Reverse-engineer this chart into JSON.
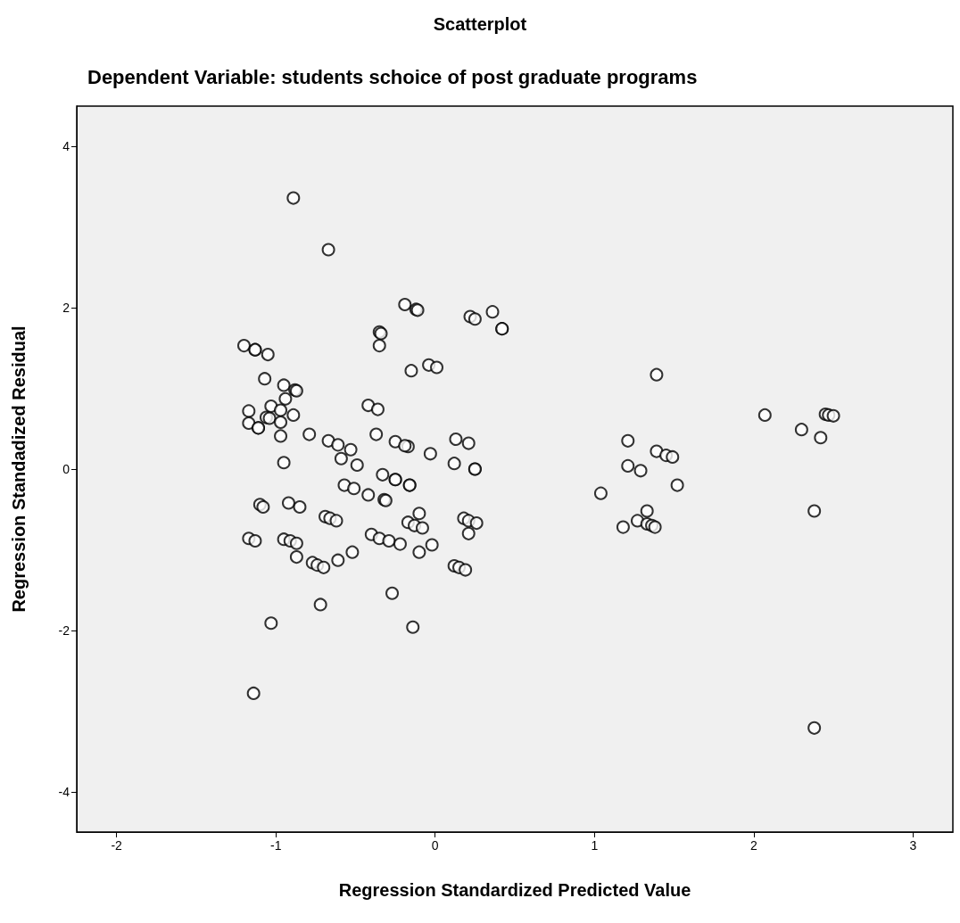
{
  "chart_data": {
    "type": "scatter",
    "title": "Scatterplot",
    "subtitle": "Dependent Variable: students schoice of post graduate programs",
    "xlabel": "Regression Standardized Predicted Value",
    "ylabel": "Regression Standadized Residual",
    "xlim": [
      -2.25,
      3.25
    ],
    "ylim": [
      -4.5,
      4.5
    ],
    "xticks": [
      -2,
      -1,
      0,
      1,
      2,
      3
    ],
    "yticks": [
      -4,
      -2,
      0,
      2,
      4
    ],
    "marker": "circle",
    "series": [
      {
        "color": "#000000",
        "x": [
          -0.89,
          -0.67,
          -0.19,
          -0.12,
          -0.11,
          0.22,
          0.25,
          0.36,
          0.42,
          0.42,
          -0.35,
          -0.34,
          -0.35,
          -1.2,
          -1.13,
          -1.13,
          -1.05,
          -0.15,
          -0.04,
          0.01,
          -1.07,
          -0.95,
          -0.88,
          -0.87,
          -0.94,
          -1.17,
          -1.03,
          -0.97,
          -0.89,
          -1.06,
          -1.04,
          -1.17,
          -1.11,
          -1.11,
          -0.97,
          -0.97,
          -0.79,
          -0.42,
          -0.36,
          -0.37,
          -0.67,
          -0.61,
          -0.53,
          -0.59,
          -0.49,
          -0.25,
          -0.17,
          -0.19,
          -0.03,
          0.13,
          0.21,
          0.12,
          0.25,
          0.25,
          -0.95,
          -0.33,
          -0.25,
          -0.25,
          -0.16,
          -0.16,
          -0.57,
          -0.51,
          -0.42,
          -0.32,
          -0.31,
          -1.1,
          -1.08,
          -0.92,
          -0.85,
          -0.69,
          -0.66,
          -0.62,
          -0.1,
          -0.17,
          -0.13,
          -0.08,
          -0.02,
          0.18,
          0.21,
          0.26,
          0.21,
          -1.17,
          -1.13,
          -0.95,
          -0.91,
          -0.87,
          -0.87,
          -0.4,
          -0.35,
          -0.29,
          -0.22,
          -0.1,
          -0.52,
          -0.61,
          -0.77,
          -0.74,
          -0.7,
          0.12,
          0.15,
          0.19,
          -0.27,
          -0.72,
          -1.03,
          -0.14,
          -1.14,
          1.39,
          2.07,
          2.45,
          2.47,
          2.5,
          2.3,
          2.42,
          1.21,
          1.39,
          1.45,
          1.49,
          1.21,
          1.29,
          1.52,
          1.04,
          1.33,
          1.27,
          1.33,
          1.36,
          1.38,
          1.18,
          2.38,
          2.38
        ],
        "values": [
          3.36,
          2.72,
          2.04,
          1.98,
          1.97,
          1.89,
          1.86,
          1.95,
          1.74,
          1.74,
          1.7,
          1.68,
          1.53,
          1.53,
          1.48,
          1.48,
          1.42,
          1.22,
          1.29,
          1.26,
          1.12,
          1.04,
          0.98,
          0.97,
          0.87,
          0.72,
          0.78,
          0.73,
          0.67,
          0.64,
          0.63,
          0.57,
          0.51,
          0.51,
          0.58,
          0.41,
          0.43,
          0.79,
          0.74,
          0.43,
          0.35,
          0.3,
          0.24,
          0.13,
          0.05,
          0.34,
          0.28,
          0.29,
          0.19,
          0.37,
          0.32,
          0.07,
          0.0,
          0.0,
          0.08,
          -0.07,
          -0.13,
          -0.13,
          -0.2,
          -0.2,
          -0.2,
          -0.24,
          -0.32,
          -0.38,
          -0.39,
          -0.44,
          -0.47,
          -0.42,
          -0.47,
          -0.59,
          -0.61,
          -0.64,
          -0.55,
          -0.66,
          -0.7,
          -0.73,
          -0.94,
          -0.61,
          -0.64,
          -0.67,
          -0.8,
          -0.86,
          -0.89,
          -0.87,
          -0.89,
          -0.92,
          -1.09,
          -0.81,
          -0.86,
          -0.89,
          -0.93,
          -1.03,
          -1.03,
          -1.13,
          -1.16,
          -1.19,
          -1.22,
          -1.2,
          -1.22,
          -1.25,
          -1.54,
          -1.68,
          -1.91,
          -1.96,
          -2.78,
          1.17,
          0.67,
          0.68,
          0.67,
          0.66,
          0.49,
          0.39,
          0.35,
          0.22,
          0.17,
          0.15,
          0.04,
          -0.02,
          -0.2,
          -0.3,
          -0.52,
          -0.64,
          -0.68,
          -0.7,
          -0.72,
          -0.72,
          -0.52,
          -3.21
        ]
      }
    ]
  }
}
